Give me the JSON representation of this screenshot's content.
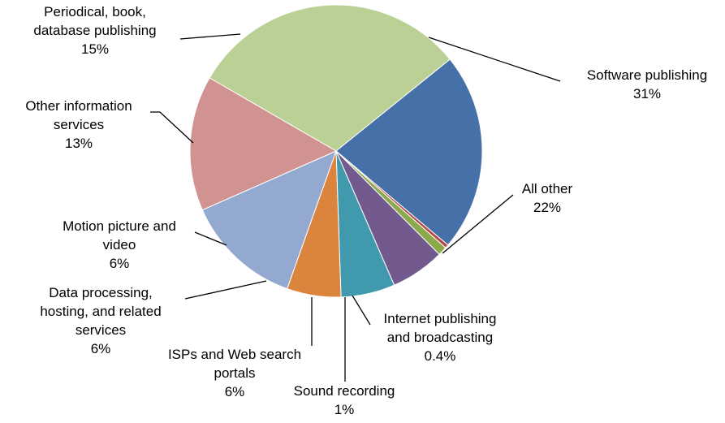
{
  "chart_data": {
    "type": "pie",
    "slices": [
      {
        "label": "Software publishing",
        "value": 31,
        "value_label": "31%",
        "color": "#BBD094"
      },
      {
        "label": "All other",
        "value": 22,
        "value_label": "22%",
        "color": "#4571A8"
      },
      {
        "label": "Internet publishing and broadcasting",
        "value": 0.4,
        "value_label": "0.4%",
        "color": "#B64A47"
      },
      {
        "label": "Sound recording",
        "value": 1,
        "value_label": "1%",
        "color": "#8CAA4B"
      },
      {
        "label": "ISPs and Web search portals",
        "value": 6,
        "value_label": "6%",
        "color": "#725A8F"
      },
      {
        "label": "Data processing, hosting, and related services",
        "value": 6,
        "value_label": "6%",
        "color": "#4199AE"
      },
      {
        "label": "Motion picture and video",
        "value": 6,
        "value_label": "6%",
        "color": "#DB843D"
      },
      {
        "label": "Other information services",
        "value": 13,
        "value_label": "13%",
        "color": "#93A9CF"
      },
      {
        "label": "Periodical, book, database publishing",
        "value": 15,
        "value_label": "15%",
        "color": "#D09391"
      }
    ],
    "display_labels": [
      [
        "Software publishing",
        "31%"
      ],
      [
        "All other",
        "22%"
      ],
      [
        "Internet publishing",
        "and broadcasting",
        "0.4%"
      ],
      [
        "Sound recording",
        "1%"
      ],
      [
        "ISPs and Web search",
        "portals",
        "6%"
      ],
      [
        "Data processing,",
        "hosting, and related",
        "services",
        "6%"
      ],
      [
        "Motion picture and",
        "video",
        "6%"
      ],
      [
        "Other information",
        "services",
        "13%"
      ],
      [
        "Periodical, book,",
        "database publishing",
        "15%"
      ]
    ]
  }
}
